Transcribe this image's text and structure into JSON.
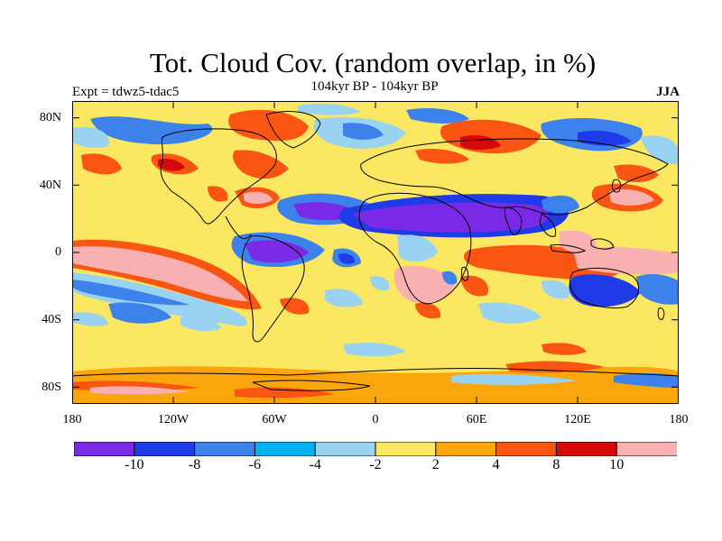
{
  "header": {
    "title": "Tot. Cloud Cov. (random overlap, in %)",
    "subtitle": "104kyr BP - 104kyr BP",
    "experiment": "Expt = tdwz5-tdac5",
    "season": "JJA"
  },
  "axes": {
    "y_ticks": [
      "80N",
      "40N",
      "0",
      "40S",
      "80S"
    ],
    "x_ticks": [
      "180",
      "120W",
      "60W",
      "0",
      "60E",
      "120E",
      "180"
    ]
  },
  "colorbar": {
    "labels": [
      "-10",
      "-8",
      "-6",
      "-4",
      "-2",
      "2",
      "4",
      "8",
      "10"
    ],
    "colors": [
      "#7a2ae6",
      "#1f3be8",
      "#3d82ea",
      "#00b3f0",
      "#9ad2f2",
      "#fbe761",
      "#fba60c",
      "#fa5512",
      "#d40a0a",
      "#f8b0b0"
    ]
  },
  "colors": {
    "ocean_background": "#fbe761",
    "coastline": "#000000"
  }
}
